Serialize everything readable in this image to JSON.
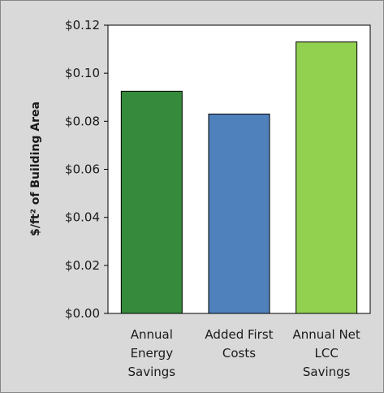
{
  "chart_data": {
    "type": "bar",
    "categories": [
      [
        "Annual",
        "Energy",
        "Savings"
      ],
      [
        "Added First",
        "Costs"
      ],
      [
        "Annual Net",
        "LCC",
        "Savings"
      ]
    ],
    "values": [
      0.0925,
      0.083,
      0.113
    ],
    "bar_colors": [
      "#358a3c",
      "#4f81bd",
      "#92d050"
    ],
    "ylabel": "$/ft² of Building Area",
    "ylim": [
      0,
      0.12
    ],
    "y_ticks": [
      0,
      0.02,
      0.04,
      0.06,
      0.08,
      0.1,
      0.12
    ],
    "y_tick_labels": [
      "$0.00",
      "$0.02",
      "$0.04",
      "$0.06",
      "$0.08",
      "$0.10",
      "$0.12"
    ],
    "grid": false,
    "legend": false
  }
}
